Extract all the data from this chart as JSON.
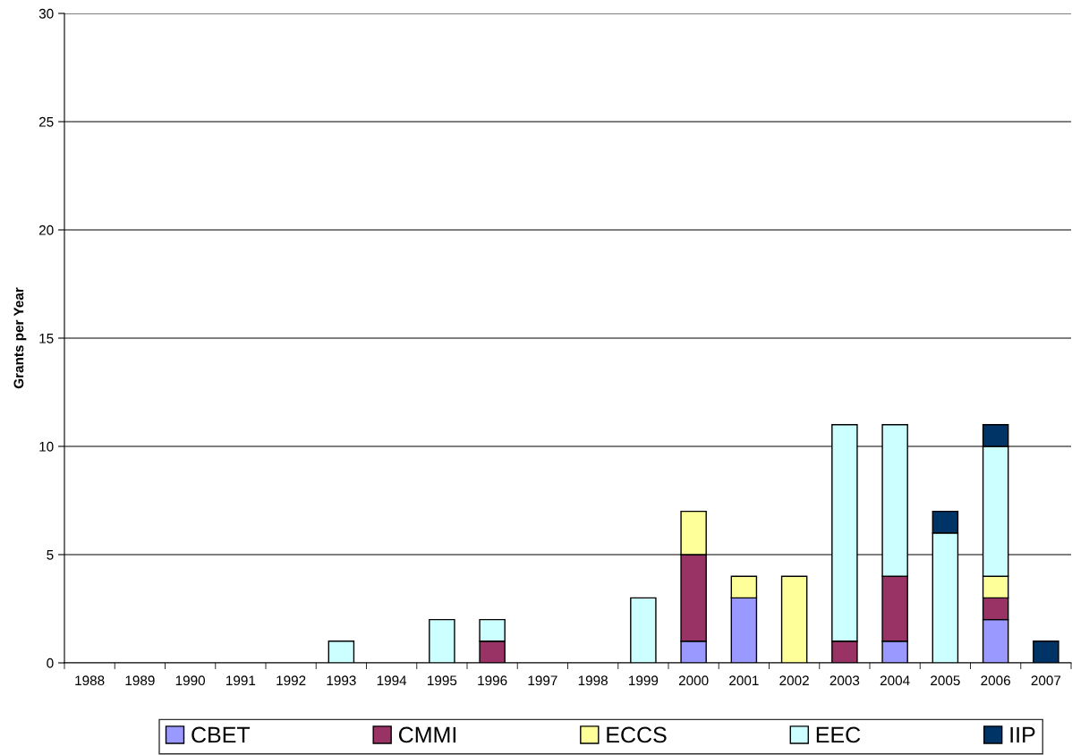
{
  "chart_data": {
    "type": "bar",
    "stacked": true,
    "ylabel": "Grants per Year",
    "categories": [
      "1988",
      "1989",
      "1990",
      "1991",
      "1992",
      "1993",
      "1994",
      "1995",
      "1996",
      "1997",
      "1998",
      "1999",
      "2000",
      "2001",
      "2002",
      "2003",
      "2004",
      "2005",
      "2006",
      "2007"
    ],
    "series": [
      {
        "name": "CBET",
        "color": "#9999ff",
        "values": [
          null,
          null,
          null,
          null,
          null,
          null,
          null,
          null,
          null,
          null,
          null,
          null,
          1,
          3,
          null,
          null,
          1,
          null,
          2,
          null
        ]
      },
      {
        "name": "CMMI",
        "color": "#993366",
        "values": [
          null,
          null,
          null,
          null,
          null,
          null,
          null,
          null,
          1,
          null,
          null,
          null,
          4,
          null,
          null,
          1,
          3,
          null,
          1,
          null
        ]
      },
      {
        "name": "ECCS",
        "color": "#ffff99",
        "values": [
          null,
          null,
          null,
          null,
          null,
          null,
          null,
          null,
          null,
          null,
          null,
          null,
          2,
          1,
          4,
          null,
          null,
          null,
          1,
          null
        ]
      },
      {
        "name": "EEC",
        "color": "#ccffff",
        "values": [
          null,
          null,
          null,
          null,
          null,
          1,
          null,
          2,
          1,
          null,
          null,
          3,
          null,
          null,
          null,
          10,
          7,
          6,
          6,
          null
        ]
      },
      {
        "name": "IIP",
        "color": "#003366",
        "values": [
          null,
          null,
          null,
          null,
          null,
          null,
          null,
          null,
          null,
          null,
          null,
          null,
          null,
          null,
          null,
          null,
          null,
          1,
          1,
          1
        ]
      }
    ],
    "ylim": [
      0,
      30
    ],
    "yticks": [
      0,
      5,
      10,
      15,
      20,
      25,
      30
    ],
    "grid": "y",
    "legend": "bottom"
  }
}
